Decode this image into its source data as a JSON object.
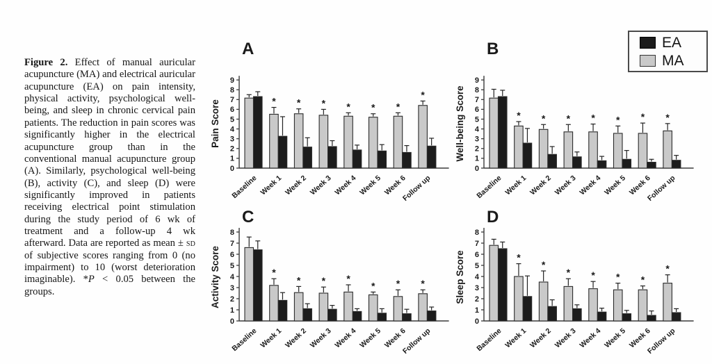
{
  "figure": {
    "caption": {
      "segments": [
        {
          "text": "Figure 2. ",
          "bold": true
        },
        {
          "text": "Effect of manual auricular acupuncture (MA) and electrical auricular acupuncture (EA) on pain intensity, physical activity, psychological well-being, and sleep in chronic cervical pain patients. The reduction in pain scores was significantly higher in the electrical acupuncture group than in the conventional manual acupuncture group (A). Similarly, psychological well-being (B), activity (C), and sleep (D) were significantly improved in patients receiving electrical point stimulation during the study period of 6 wk of treatment and a follow-up 4 wk afterward. Data are reported as mean ± "
        },
        {
          "text": "sd",
          "smallcaps": true
        },
        {
          "text": " of subjective scores ranging from 0 (no impairment) to 10 (worst deterioration imaginable). *"
        },
        {
          "text": "P",
          "italic": true
        },
        {
          "text": " < 0.05 between the groups."
        }
      ]
    },
    "legend": {
      "items": [
        {
          "label": "EA",
          "color": "#1c1c1c",
          "border": "#000000"
        },
        {
          "label": "MA",
          "color": "#c9c9c9",
          "border": "#333333"
        }
      ]
    },
    "colors": {
      "ma_bar": "#c9c9c9",
      "ea_bar": "#1c1c1c",
      "axis": "#3a3a3a"
    }
  },
  "chart_data": [
    {
      "type": "bar",
      "panel": "A",
      "ylabel": "Pain Score",
      "ylim": [
        0,
        9
      ],
      "yticks": [
        0,
        1,
        2,
        3,
        4,
        5,
        6,
        7,
        8,
        9
      ],
      "categories": [
        "Baseline",
        "Week 1",
        "Week 2",
        "Week 3",
        "Week 4",
        "Week 5",
        "Week 6",
        "Follow up"
      ],
      "series": [
        {
          "name": "MA",
          "color": "#c9c9c9",
          "values": [
            7.15,
            5.5,
            5.55,
            5.4,
            5.3,
            5.2,
            5.3,
            6.4
          ],
          "errors": [
            0.35,
            0.7,
            0.5,
            0.6,
            0.35,
            0.35,
            0.35,
            0.45
          ]
        },
        {
          "name": "EA",
          "color": "#1c1c1c",
          "values": [
            7.3,
            3.25,
            2.15,
            2.2,
            1.85,
            1.75,
            1.6,
            2.25
          ],
          "errors": [
            0.5,
            2.0,
            0.95,
            0.6,
            0.5,
            0.65,
            0.7,
            0.8
          ]
        }
      ],
      "sig_marker": {
        "symbol": "*",
        "series": "MA",
        "categories": [
          "Week 1",
          "Week 2",
          "Week 3",
          "Week 4",
          "Week 5",
          "Week 6",
          "Follow up"
        ]
      }
    },
    {
      "type": "bar",
      "panel": "B",
      "ylabel": "Well-being Score",
      "ylim": [
        0,
        9
      ],
      "yticks": [
        0,
        1,
        2,
        3,
        4,
        5,
        6,
        7,
        8,
        9
      ],
      "categories": [
        "Baseline",
        "Week 1",
        "Week 2",
        "Week 3",
        "Week 4",
        "Week 5",
        "Week 6",
        "Follow up"
      ],
      "series": [
        {
          "name": "MA",
          "color": "#c9c9c9",
          "values": [
            7.15,
            4.3,
            3.95,
            3.7,
            3.7,
            3.55,
            3.55,
            3.8
          ],
          "errors": [
            0.9,
            0.45,
            0.5,
            0.75,
            0.8,
            0.75,
            1.05,
            0.75
          ]
        },
        {
          "name": "EA",
          "color": "#1c1c1c",
          "values": [
            7.3,
            2.55,
            1.4,
            1.15,
            0.75,
            0.9,
            0.6,
            0.8
          ],
          "errors": [
            0.65,
            1.5,
            0.8,
            0.5,
            0.45,
            0.9,
            0.3,
            0.5
          ]
        }
      ],
      "sig_marker": {
        "symbol": "*",
        "series": "MA",
        "categories": [
          "Week 1",
          "Week 2",
          "Week 3",
          "Week 4",
          "Week 5",
          "Week 6",
          "Follow up"
        ]
      }
    },
    {
      "type": "bar",
      "panel": "C",
      "ylabel": "Activity Score",
      "ylim": [
        0,
        8
      ],
      "yticks": [
        0,
        1,
        2,
        3,
        4,
        5,
        6,
        7,
        8
      ],
      "categories": [
        "Baseline",
        "Week 1",
        "Week 2",
        "Week 3",
        "Week 4",
        "Week 5",
        "Week 6",
        "Follow up"
      ],
      "series": [
        {
          "name": "MA",
          "color": "#c9c9c9",
          "values": [
            6.6,
            3.2,
            2.55,
            2.5,
            2.6,
            2.35,
            2.2,
            2.45
          ],
          "errors": [
            0.95,
            0.6,
            0.55,
            0.55,
            0.65,
            0.25,
            0.6,
            0.35
          ]
        },
        {
          "name": "EA",
          "color": "#1c1c1c",
          "values": [
            6.4,
            1.85,
            1.1,
            1.05,
            0.85,
            0.7,
            0.65,
            0.9
          ],
          "errors": [
            0.8,
            0.7,
            0.45,
            0.35,
            0.25,
            0.4,
            0.4,
            0.35
          ]
        }
      ],
      "sig_marker": {
        "symbol": "*",
        "series": "MA",
        "categories": [
          "Week 1",
          "Week 2",
          "Week 3",
          "Week 4",
          "Week 5",
          "Week 6",
          "Follow up"
        ]
      }
    },
    {
      "type": "bar",
      "panel": "D",
      "ylabel": "Sleep Score",
      "ylim": [
        0,
        8
      ],
      "yticks": [
        0,
        1,
        2,
        3,
        4,
        5,
        6,
        7,
        8
      ],
      "categories": [
        "Baseline",
        "Week 1",
        "Week 2",
        "Week 3",
        "Week 4",
        "Week 5",
        "Week 6",
        "Follow up"
      ],
      "series": [
        {
          "name": "MA",
          "color": "#c9c9c9",
          "values": [
            6.8,
            4.0,
            3.5,
            3.1,
            2.9,
            2.8,
            2.8,
            3.4
          ],
          "errors": [
            0.55,
            1.15,
            1.0,
            0.7,
            0.65,
            0.6,
            0.35,
            0.75
          ]
        },
        {
          "name": "EA",
          "color": "#1c1c1c",
          "values": [
            6.5,
            2.2,
            1.3,
            1.1,
            0.8,
            0.65,
            0.5,
            0.75
          ],
          "errors": [
            0.6,
            1.85,
            0.6,
            0.35,
            0.35,
            0.3,
            0.4,
            0.35
          ]
        }
      ],
      "sig_marker": {
        "symbol": "*",
        "series": "MA",
        "categories": [
          "Week 1",
          "Week 2",
          "Week 3",
          "Week 4",
          "Week 5",
          "Week 6",
          "Follow up"
        ]
      }
    }
  ]
}
